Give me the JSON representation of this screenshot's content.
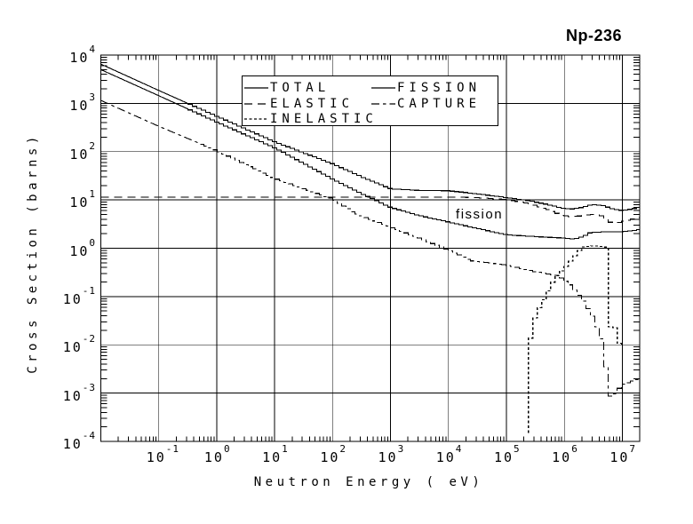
{
  "title": "Np-236",
  "colors": {
    "foreground": "#000000",
    "background": "#ffffff"
  },
  "axes": {
    "x": {
      "label": "Neutron Energy ( eV)",
      "tick_exponents": [
        -1,
        0,
        1,
        2,
        3,
        4,
        5,
        6,
        7
      ]
    },
    "y": {
      "label": "Cross Section (barns)",
      "tick_exponents": [
        4,
        3,
        2,
        1,
        0,
        -1,
        -2,
        -3,
        -4
      ]
    }
  },
  "legend": {
    "items": [
      {
        "label": "TOTAL",
        "dash": "solid",
        "col": 0,
        "row": 0
      },
      {
        "label": "ELASTIC",
        "dash": "long-dash",
        "col": 0,
        "row": 1
      },
      {
        "label": "INELASTIC",
        "dash": "fine-dash",
        "col": 0,
        "row": 2
      },
      {
        "label": "FISSION",
        "dash": "solid",
        "col": 1,
        "row": 0
      },
      {
        "label": "CAPTURE",
        "dash": "dash-dot",
        "col": 1,
        "row": 1
      }
    ]
  },
  "chart_data": {
    "type": "line",
    "title": "Np-236",
    "xlabel": "Neutron Energy ( eV)",
    "ylabel": "Cross Section (barns)",
    "xscale": "log",
    "yscale": "log",
    "xlim": [
      0.01,
      20000000.0
    ],
    "ylim": [
      0.0001,
      10000.0
    ],
    "grid": true,
    "legend_position": "top-center",
    "annotations": [
      {
        "text": "fission",
        "x_ev": 13400,
        "y_barns": 7.2
      }
    ],
    "series": [
      {
        "name": "TOTAL",
        "dash": "solid",
        "steps_from_log10e": -0.5,
        "points": [
          [
            0.01,
            6500
          ],
          [
            0.1,
            1850
          ],
          [
            1,
            540
          ],
          [
            10,
            160
          ],
          [
            100,
            56
          ],
          [
            300,
            31
          ],
          [
            1000,
            17
          ],
          [
            3000,
            15.8
          ],
          [
            10000,
            15.5
          ],
          [
            30000,
            13.5
          ],
          [
            100000.0,
            11.2
          ],
          [
            250000.0,
            9.6
          ],
          [
            500000.0,
            8.1
          ],
          [
            900000.0,
            6.8
          ],
          [
            1400000.0,
            6.5
          ],
          [
            2000000.0,
            7.0
          ],
          [
            3000000.0,
            8.1
          ],
          [
            4500000.0,
            7.7
          ],
          [
            7000000.0,
            6.5
          ],
          [
            10000000.0,
            6.05
          ],
          [
            15000000.0,
            6.5
          ],
          [
            20000000.0,
            7.2
          ]
        ]
      },
      {
        "name": "FISSION",
        "dash": "solid",
        "steps_from_log10e": -0.5,
        "points": [
          [
            0.01,
            5000
          ],
          [
            0.1,
            1440
          ],
          [
            1,
            410
          ],
          [
            10,
            120
          ],
          [
            100,
            27
          ],
          [
            300,
            14
          ],
          [
            1000,
            7
          ],
          [
            3000,
            4.8
          ],
          [
            10000.0,
            3.5
          ],
          [
            30000.0,
            2.6
          ],
          [
            100000.0,
            1.9
          ],
          [
            300000.0,
            1.75
          ],
          [
            900000.0,
            1.63
          ],
          [
            1500000.0,
            1.55
          ],
          [
            2200000.0,
            1.8
          ],
          [
            2800000.0,
            2.1
          ],
          [
            5000000.0,
            2.2
          ],
          [
            10000000.0,
            2.2
          ],
          [
            15000000.0,
            2.3
          ],
          [
            20000000.0,
            2.45
          ]
        ]
      },
      {
        "name": "ELASTIC",
        "dash": "long-dash",
        "steps_from_log10e": 4.3,
        "points": [
          [
            0.01,
            11.5
          ],
          [
            10000.0,
            11.5
          ],
          [
            30000.0,
            11.2
          ],
          [
            100000.0,
            10.2
          ],
          [
            250000.0,
            8.4
          ],
          [
            500000.0,
            6.4
          ],
          [
            900000.0,
            4.8
          ],
          [
            1300000.0,
            4.5
          ],
          [
            2000000.0,
            4.7
          ],
          [
            3000000.0,
            5.0
          ],
          [
            4500000.0,
            4.7
          ],
          [
            6300000.0,
            3.4
          ],
          [
            8000000.0,
            3.3
          ],
          [
            10000000.0,
            3.6
          ],
          [
            15000000.0,
            4.0
          ],
          [
            20000000.0,
            4.3
          ]
        ]
      },
      {
        "name": "CAPTURE",
        "dash": "dash-dot",
        "steps_from_log10e": -0.3,
        "points": [
          [
            0.01,
            1150
          ],
          [
            0.1,
            335
          ],
          [
            1,
            105
          ],
          [
            10,
            28
          ],
          [
            100,
            10.5
          ],
          [
            250,
            5.2
          ],
          [
            900,
            2.9
          ],
          [
            3000,
            1.65
          ],
          [
            10000.0,
            0.92
          ],
          [
            25000.0,
            0.55
          ],
          [
            100000.0,
            0.45
          ],
          [
            300000.0,
            0.33
          ],
          [
            800000.0,
            0.27
          ],
          [
            1300000.0,
            0.17
          ],
          [
            2100000.0,
            0.085
          ],
          [
            3200000.0,
            0.036
          ],
          [
            4500000.0,
            0.012
          ],
          [
            5200000.0,
            0.0035
          ],
          [
            5800000.0,
            0.00085
          ],
          [
            7000000.0,
            0.0009
          ],
          [
            10000000.0,
            0.0015
          ],
          [
            20000000.0,
            0.002
          ]
        ]
      },
      {
        "name": "INELASTIC",
        "dash": "fine-dash",
        "steps_from_log10e": 5.2,
        "points": [
          [
            240000.0,
            0.00015
          ],
          [
            245000.0,
            0.009
          ],
          [
            300000.0,
            0.032
          ],
          [
            380000.0,
            0.062
          ],
          [
            480000.0,
            0.1
          ],
          [
            600000.0,
            0.18
          ],
          [
            800000.0,
            0.3
          ],
          [
            1000000.0,
            0.38
          ],
          [
            1300000.0,
            0.55
          ],
          [
            1700000.0,
            0.82
          ],
          [
            2100000.0,
            1.05
          ],
          [
            3000000.0,
            1.12
          ],
          [
            5000000.0,
            1.08
          ],
          [
            5900000.0,
            1.0
          ],
          [
            6050000.0,
            0.024
          ],
          [
            8200000.0,
            0.022
          ],
          [
            8600000.0,
            0.011
          ],
          [
            10500000.0,
            0.01
          ]
        ]
      }
    ]
  }
}
